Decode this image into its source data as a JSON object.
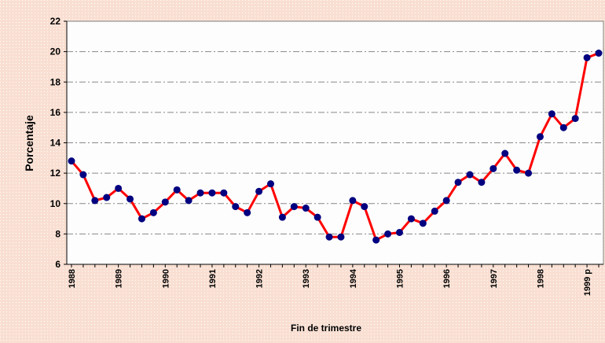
{
  "chart_data": {
    "type": "line",
    "x_label": "Fin de trimestre",
    "y_label": "Porcentaje",
    "categories": [
      "1988",
      null,
      null,
      null,
      "1989",
      null,
      null,
      null,
      "1990",
      null,
      null,
      null,
      "1991",
      null,
      null,
      null,
      "1992",
      null,
      null,
      null,
      "1993",
      null,
      null,
      null,
      "1994",
      null,
      null,
      null,
      "1995",
      null,
      null,
      null,
      "1996",
      null,
      null,
      null,
      "1997",
      null,
      null,
      null,
      "1998",
      null,
      null,
      null,
      "1999 p",
      null
    ],
    "series": [
      {
        "color": "#ff0000",
        "marker_color": "#000080",
        "values": [
          12.8,
          11.9,
          10.2,
          10.4,
          11.0,
          10.3,
          9.0,
          9.4,
          10.1,
          10.9,
          10.2,
          10.7,
          10.7,
          10.7,
          9.8,
          9.4,
          10.8,
          11.3,
          9.1,
          9.8,
          9.7,
          9.1,
          7.8,
          7.8,
          10.2,
          9.8,
          7.6,
          8.0,
          8.1,
          9.0,
          8.7,
          9.5,
          10.2,
          11.4,
          11.9,
          11.4,
          12.3,
          13.3,
          12.2,
          12.0,
          14.4,
          15.9,
          15.0,
          15.6,
          19.6,
          19.9
        ]
      }
    ],
    "ylim": [
      6,
      22
    ],
    "yticks": [
      6,
      8,
      10,
      12,
      14,
      16,
      18,
      20,
      22
    ],
    "grid": true
  }
}
